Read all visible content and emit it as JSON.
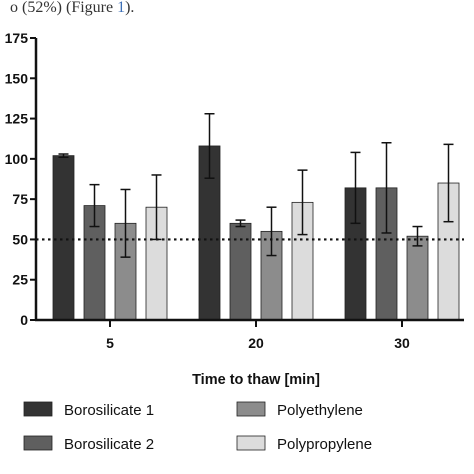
{
  "caption": {
    "before": "o (52%) (Figure ",
    "link": "1",
    "after": ")."
  },
  "chart_data": {
    "type": "bar",
    "title": "",
    "xlabel": "Time to thaw [min]",
    "ylabel": "",
    "ylim": [
      0,
      175
    ],
    "yticks": [
      0,
      25,
      50,
      75,
      100,
      125,
      150,
      175
    ],
    "categories": [
      "5",
      "20",
      "30"
    ],
    "reference_line": 50,
    "grid": false,
    "legend_position": "bottom",
    "series": [
      {
        "name": "Borosilicate 1",
        "color": "#333333",
        "values": [
          102,
          108,
          82
        ],
        "errors": [
          1,
          20,
          22
        ]
      },
      {
        "name": "Borosilicate 2",
        "color": "#5f5f5f",
        "values": [
          71,
          60,
          82
        ],
        "errors": [
          13,
          2,
          28
        ]
      },
      {
        "name": "Polyethylene",
        "color": "#8c8c8c",
        "values": [
          60,
          55,
          52
        ],
        "errors": [
          21,
          15,
          6
        ]
      },
      {
        "name": "Polypropylene",
        "color": "#dcdcdc",
        "values": [
          70,
          73,
          85
        ],
        "errors": [
          20,
          20,
          24
        ]
      }
    ]
  }
}
